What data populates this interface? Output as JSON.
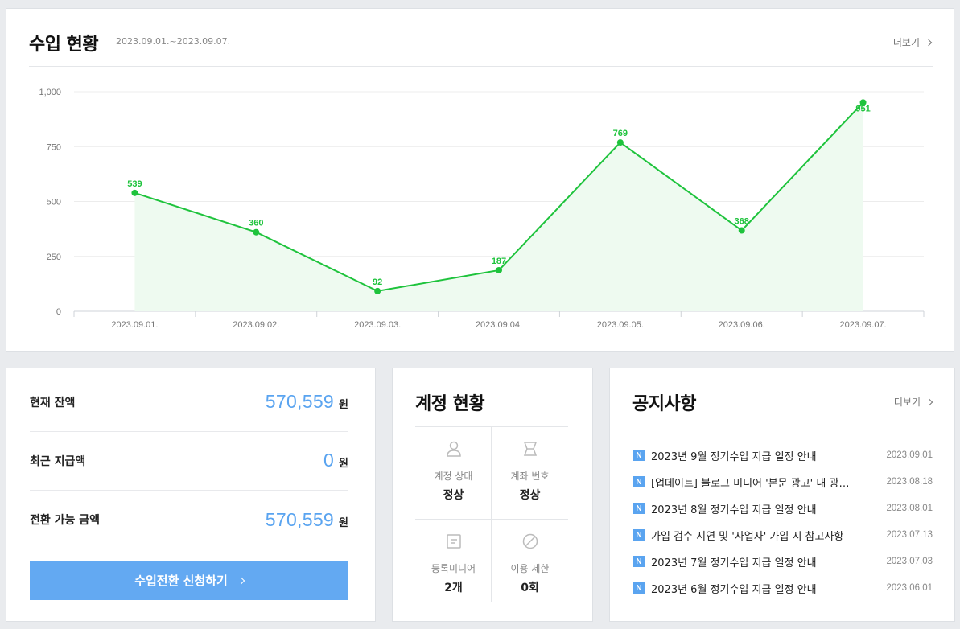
{
  "revenue": {
    "title": "수입 현황",
    "date_range": "2023.09.01.~2023.09.07.",
    "more_label": "더보기"
  },
  "chart_data": {
    "type": "area",
    "categories": [
      "2023.09.01.",
      "2023.09.02.",
      "2023.09.03.",
      "2023.09.04.",
      "2023.09.05.",
      "2023.09.06.",
      "2023.09.07."
    ],
    "values": [
      539,
      360,
      92,
      187,
      769,
      368,
      951
    ],
    "y_ticks": [
      "0",
      "250",
      "500",
      "750",
      "1,000"
    ],
    "y_tick_values": [
      0,
      250,
      500,
      750,
      1000
    ],
    "ylim": [
      0,
      1000
    ],
    "grid": true,
    "line_color": "#1ec33c",
    "fill_color": "#eefaf0"
  },
  "balance": {
    "rows": [
      {
        "label": "현재 잔액",
        "value": "570,559",
        "unit": "원"
      },
      {
        "label": "최근 지급액",
        "value": "0",
        "unit": "원"
      },
      {
        "label": "전환 가능 금액",
        "value": "570,559",
        "unit": "원"
      }
    ],
    "button_label": "수입전환 신청하기"
  },
  "account": {
    "title": "계정 현황",
    "items": [
      {
        "icon": "user-icon",
        "label": "계정 상태",
        "value": "정상"
      },
      {
        "icon": "bank-account-icon",
        "label": "계좌 번호",
        "value": "정상"
      },
      {
        "icon": "media-list-icon",
        "label": "등록미디어",
        "value": "2개"
      },
      {
        "icon": "prohibited-icon",
        "label": "이용 제한",
        "value": "0회"
      }
    ]
  },
  "notices": {
    "title": "공지사항",
    "more_label": "더보기",
    "badge": "N",
    "items": [
      {
        "title": "2023년 9월 정기수입 지급 일정 안내",
        "date": "2023.09.01"
      },
      {
        "title": "[업데이트] 블로그 미디어 '본문 광고' 내 광고 게재 안내",
        "date": "2023.08.18"
      },
      {
        "title": "2023년 8월 정기수입 지급 일정 안내",
        "date": "2023.08.01"
      },
      {
        "title": "가입 검수 지연 및 '사업자' 가입 시 참고사항",
        "date": "2023.07.13"
      },
      {
        "title": "2023년 7월 정기수입 지급 일정 안내",
        "date": "2023.07.03"
      },
      {
        "title": "2023년 6월 정기수입 지급 일정 안내",
        "date": "2023.06.01"
      }
    ]
  }
}
